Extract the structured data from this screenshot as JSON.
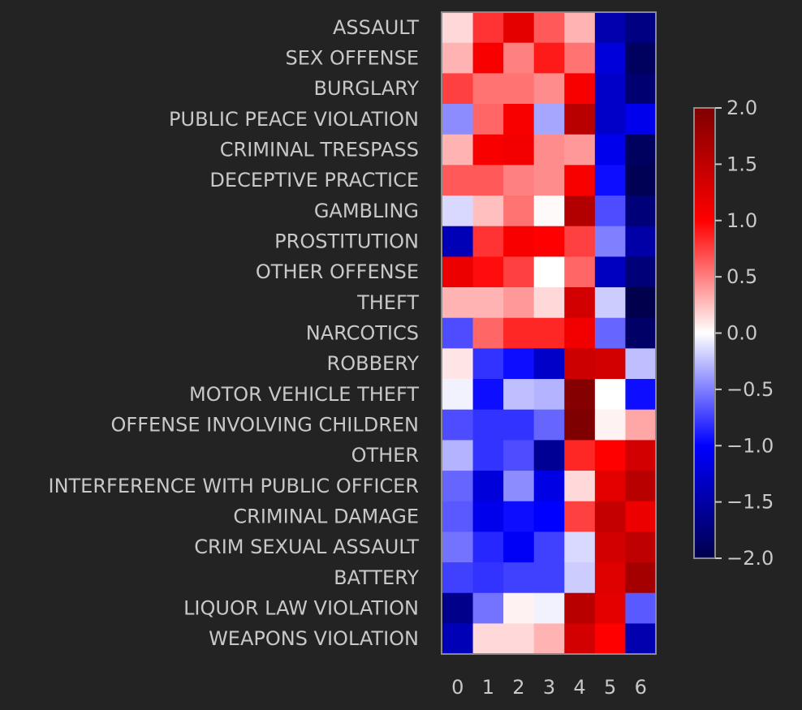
{
  "chart_data": {
    "type": "heatmap",
    "rows": [
      "ASSAULT",
      "SEX OFFENSE",
      "BURGLARY",
      "PUBLIC PEACE VIOLATION",
      "CRIMINAL TRESPASS",
      "DECEPTIVE PRACTICE",
      "GAMBLING",
      "PROSTITUTION",
      "OTHER OFFENSE",
      "THEFT",
      "NARCOTICS",
      "ROBBERY",
      "MOTOR VEHICLE THEFT",
      "OFFENSE INVOLVING CHILDREN",
      "OTHER",
      "INTERFERENCE WITH PUBLIC OFFICER",
      "CRIMINAL DAMAGE",
      "CRIM SEXUAL ASSAULT",
      "BATTERY",
      "LIQUOR LAW VIOLATION",
      "WEAPONS VIOLATION"
    ],
    "columns": [
      "0",
      "1",
      "2",
      "3",
      "4",
      "5",
      "6"
    ],
    "values": [
      [
        0.15,
        0.8,
        1.2,
        0.65,
        0.3,
        -1.45,
        -1.7
      ],
      [
        0.3,
        1.05,
        0.5,
        0.9,
        0.55,
        -1.2,
        -1.9
      ],
      [
        0.75,
        0.55,
        0.55,
        0.45,
        1.05,
        -1.3,
        -1.8
      ],
      [
        -0.45,
        0.6,
        1.05,
        -0.35,
        1.55,
        -1.3,
        -1.1
      ],
      [
        0.3,
        1.05,
        1.1,
        0.45,
        0.4,
        -1.1,
        -1.9
      ],
      [
        0.65,
        0.65,
        0.5,
        0.45,
        1.05,
        -0.95,
        -1.95
      ],
      [
        -0.15,
        0.25,
        0.55,
        0.02,
        1.6,
        -0.7,
        -1.75
      ],
      [
        -1.4,
        0.8,
        1.05,
        1.0,
        0.75,
        -0.5,
        -1.5
      ],
      [
        1.15,
        0.95,
        0.75,
        0.0,
        0.6,
        -1.35,
        -1.75
      ],
      [
        0.3,
        0.3,
        0.4,
        0.15,
        1.35,
        -0.2,
        -2.0
      ],
      [
        -0.7,
        0.6,
        0.85,
        0.85,
        1.1,
        -0.6,
        -1.85
      ],
      [
        0.1,
        -0.8,
        -0.95,
        -1.3,
        1.4,
        1.35,
        -0.25
      ],
      [
        -0.05,
        -0.95,
        -0.25,
        -0.3,
        1.95,
        0.0,
        -0.95
      ],
      [
        -0.7,
        -0.8,
        -0.8,
        -0.6,
        2.0,
        0.05,
        0.35
      ],
      [
        -0.3,
        -0.8,
        -0.7,
        -1.6,
        0.85,
        1.0,
        1.35
      ],
      [
        -0.6,
        -1.2,
        -0.45,
        -1.15,
        0.15,
        1.2,
        1.55
      ],
      [
        -0.65,
        -1.1,
        -0.95,
        -1.0,
        0.75,
        1.45,
        1.15
      ],
      [
        -0.55,
        -0.85,
        -1.05,
        -0.75,
        -0.15,
        1.35,
        1.5
      ],
      [
        -0.75,
        -0.8,
        -0.75,
        -0.75,
        -0.2,
        1.25,
        1.7
      ],
      [
        -1.65,
        -0.55,
        0.05,
        -0.05,
        1.55,
        1.2,
        -0.65
      ],
      [
        -1.4,
        0.15,
        0.15,
        0.3,
        1.35,
        1.0,
        -1.45
      ]
    ],
    "vmin": -2.0,
    "vmax": 2.0,
    "colormap": "seismic",
    "colorbar": {
      "ticks": [
        2.0,
        1.5,
        1.0,
        0.5,
        0.0,
        -0.5,
        -1.0,
        -1.5,
        -2.0
      ],
      "tick_labels": [
        "2.0",
        "1.5",
        "1.0",
        "0.5",
        "0.0",
        "−0.5",
        "−1.0",
        "−1.5",
        "−2.0"
      ]
    }
  }
}
